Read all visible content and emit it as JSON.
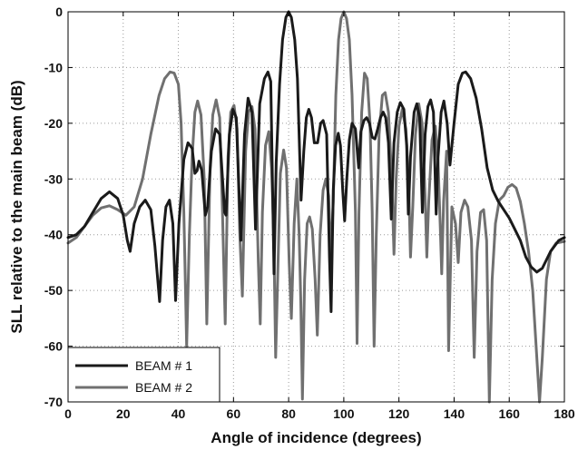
{
  "chart_data": {
    "type": "line",
    "title": "",
    "xlabel": "Angle of incidence (degrees)",
    "ylabel": "SLL relative to the main beam (dB)",
    "xlim": [
      0,
      180
    ],
    "ylim": [
      -70,
      0
    ],
    "xticks": [
      0,
      20,
      40,
      60,
      80,
      100,
      120,
      140,
      160,
      180
    ],
    "yticks": [
      0,
      -10,
      -20,
      -30,
      -40,
      -50,
      -60,
      -70
    ],
    "grid": true,
    "grid_style": "dotted",
    "legend_position": "bottom-left",
    "series": [
      {
        "name": "BEAM # 1",
        "color": "#1a1a1a",
        "points": [
          [
            0,
            -40.5
          ],
          [
            3,
            -40
          ],
          [
            6,
            -38.5
          ],
          [
            9,
            -36
          ],
          [
            12,
            -33.5
          ],
          [
            15,
            -32.3
          ],
          [
            18,
            -33.5
          ],
          [
            20,
            -36.5
          ],
          [
            21.5,
            -41
          ],
          [
            22.5,
            -43
          ],
          [
            24,
            -38
          ],
          [
            26,
            -35
          ],
          [
            28,
            -33.8
          ],
          [
            30,
            -35.5
          ],
          [
            31.5,
            -42
          ],
          [
            32.5,
            -48
          ],
          [
            33.2,
            -52
          ],
          [
            34.3,
            -41
          ],
          [
            35.5,
            -35
          ],
          [
            36.8,
            -33.8
          ],
          [
            38,
            -38
          ],
          [
            39,
            -51.8
          ],
          [
            40.2,
            -38
          ],
          [
            42,
            -26.5
          ],
          [
            43.5,
            -23.5
          ],
          [
            45,
            -24.5
          ],
          [
            46,
            -29
          ],
          [
            46.8,
            -28.5
          ],
          [
            47.5,
            -26.8
          ],
          [
            48.5,
            -28.5
          ],
          [
            49.8,
            -36.5
          ],
          [
            50.6,
            -35
          ],
          [
            52,
            -25
          ],
          [
            53.5,
            -21
          ],
          [
            55,
            -22
          ],
          [
            56.8,
            -36
          ],
          [
            57.3,
            -36.5
          ],
          [
            58.5,
            -22
          ],
          [
            59.8,
            -17.5
          ],
          [
            61,
            -19
          ],
          [
            62.7,
            -41
          ],
          [
            64,
            -22
          ],
          [
            65.3,
            -15.5
          ],
          [
            66.7,
            -18
          ],
          [
            68,
            -39
          ],
          [
            69.5,
            -16.5
          ],
          [
            71.2,
            -12
          ],
          [
            72.5,
            -10.8
          ],
          [
            73.5,
            -12.5
          ],
          [
            74.7,
            -47
          ],
          [
            75.5,
            -27
          ],
          [
            76.7,
            -13
          ],
          [
            77.8,
            -5
          ],
          [
            79,
            -1
          ],
          [
            80,
            0
          ],
          [
            81,
            -1
          ],
          [
            82.2,
            -5
          ],
          [
            83.2,
            -12
          ],
          [
            84.5,
            -33.8
          ],
          [
            85.5,
            -25
          ],
          [
            86.4,
            -19
          ],
          [
            87.3,
            -17.5
          ],
          [
            88.3,
            -19
          ],
          [
            89.3,
            -23.5
          ],
          [
            90.5,
            -23.5
          ],
          [
            91.6,
            -20
          ],
          [
            92.5,
            -19.5
          ],
          [
            93.8,
            -22
          ],
          [
            94.8,
            -44
          ],
          [
            95.4,
            -53.8
          ],
          [
            96.2,
            -32
          ],
          [
            97,
            -24
          ],
          [
            98,
            -21.8
          ],
          [
            98.8,
            -24
          ],
          [
            99.6,
            -32
          ],
          [
            100.3,
            -37.5
          ],
          [
            101.1,
            -30
          ],
          [
            102,
            -23
          ],
          [
            103,
            -20
          ],
          [
            104.2,
            -21
          ],
          [
            105.4,
            -28
          ],
          [
            106.2,
            -21.5
          ],
          [
            107.3,
            -19.5
          ],
          [
            108.3,
            -19
          ],
          [
            109.3,
            -20
          ],
          [
            110.3,
            -22.5
          ],
          [
            111.3,
            -22.8
          ],
          [
            112.3,
            -21
          ],
          [
            113.3,
            -19
          ],
          [
            114.3,
            -18
          ],
          [
            115.2,
            -19
          ],
          [
            116.2,
            -23.5
          ],
          [
            117.2,
            -37.2
          ],
          [
            118.2,
            -23.5
          ],
          [
            119.4,
            -18
          ],
          [
            120.5,
            -16.3
          ],
          [
            121.8,
            -17.5
          ],
          [
            122.8,
            -24
          ],
          [
            123.4,
            -36.3
          ],
          [
            124.2,
            -26
          ],
          [
            125.5,
            -18
          ],
          [
            126.5,
            -16.5
          ],
          [
            127.5,
            -19
          ],
          [
            128.5,
            -36
          ],
          [
            129.5,
            -22
          ],
          [
            130.5,
            -17
          ],
          [
            131.5,
            -15.8
          ],
          [
            132.5,
            -18
          ],
          [
            133.5,
            -36.3
          ],
          [
            134.2,
            -26
          ],
          [
            135.3,
            -18
          ],
          [
            136.3,
            -16
          ],
          [
            137.5,
            -20
          ],
          [
            138.5,
            -27.5
          ],
          [
            140,
            -20
          ],
          [
            141.5,
            -13
          ],
          [
            143,
            -11
          ],
          [
            144.2,
            -10.8
          ],
          [
            146,
            -12
          ],
          [
            148,
            -15.5
          ],
          [
            150,
            -21
          ],
          [
            152,
            -28
          ],
          [
            154,
            -32
          ],
          [
            156,
            -34
          ],
          [
            158,
            -35.5
          ],
          [
            160,
            -37
          ],
          [
            162,
            -39
          ],
          [
            164,
            -41
          ],
          [
            166,
            -44
          ],
          [
            168,
            -45.8
          ],
          [
            170,
            -46.7
          ],
          [
            172,
            -46
          ],
          [
            175,
            -43
          ],
          [
            178,
            -41
          ],
          [
            180,
            -40.5
          ]
        ]
      },
      {
        "name": "BEAM # 2",
        "color": "#707070",
        "points": [
          [
            0,
            -41.5
          ],
          [
            3,
            -40.5
          ],
          [
            6,
            -38.5
          ],
          [
            9,
            -36.5
          ],
          [
            12,
            -35.2
          ],
          [
            15,
            -34.8
          ],
          [
            18,
            -35.5
          ],
          [
            21,
            -36.5
          ],
          [
            24,
            -35
          ],
          [
            27,
            -30
          ],
          [
            30,
            -22
          ],
          [
            33,
            -15
          ],
          [
            35,
            -12
          ],
          [
            37,
            -10.8
          ],
          [
            38.5,
            -11
          ],
          [
            40,
            -13
          ],
          [
            41,
            -20
          ],
          [
            42,
            -36
          ],
          [
            42.5,
            -48
          ],
          [
            43,
            -60
          ],
          [
            44,
            -40
          ],
          [
            45,
            -26
          ],
          [
            46,
            -18
          ],
          [
            47,
            -16
          ],
          [
            48.2,
            -18.5
          ],
          [
            49.4,
            -30
          ],
          [
            50.3,
            -56
          ],
          [
            51.5,
            -28
          ],
          [
            52.5,
            -18.5
          ],
          [
            53.7,
            -15.8
          ],
          [
            55,
            -19
          ],
          [
            56,
            -36
          ],
          [
            57,
            -56
          ],
          [
            58,
            -26
          ],
          [
            59,
            -18
          ],
          [
            60.2,
            -16.8
          ],
          [
            61.3,
            -21
          ],
          [
            62.3,
            -40
          ],
          [
            63.2,
            -51
          ],
          [
            64.4,
            -25
          ],
          [
            65.5,
            -18
          ],
          [
            66.7,
            -17
          ],
          [
            67.8,
            -21
          ],
          [
            69,
            -45
          ],
          [
            69.7,
            -56
          ],
          [
            70.5,
            -36
          ],
          [
            71.6,
            -24
          ],
          [
            72.8,
            -21.5
          ],
          [
            73.8,
            -28
          ],
          [
            74.6,
            -40
          ],
          [
            75.3,
            -62
          ],
          [
            76.2,
            -44
          ],
          [
            77,
            -29
          ],
          [
            78.2,
            -24.8
          ],
          [
            79.2,
            -28
          ],
          [
            80.2,
            -45
          ],
          [
            81,
            -55
          ],
          [
            82,
            -38
          ],
          [
            83,
            -30
          ],
          [
            83.8,
            -40
          ],
          [
            84.4,
            -52
          ],
          [
            85,
            -69.5
          ],
          [
            85.8,
            -48
          ],
          [
            86.7,
            -38
          ],
          [
            87.6,
            -36.8
          ],
          [
            88.6,
            -39
          ],
          [
            89.6,
            -48
          ],
          [
            90.4,
            -58
          ],
          [
            91.4,
            -40
          ],
          [
            92.5,
            -32
          ],
          [
            93.5,
            -30
          ],
          [
            94.5,
            -33
          ],
          [
            95.3,
            -44
          ],
          [
            96.2,
            -34
          ],
          [
            97.1,
            -15
          ],
          [
            98.1,
            -5
          ],
          [
            99,
            -1.2
          ],
          [
            100,
            0
          ],
          [
            101,
            -1.2
          ],
          [
            102,
            -5
          ],
          [
            103,
            -15
          ],
          [
            104.2,
            -36
          ],
          [
            104.8,
            -59.5
          ],
          [
            105.5,
            -36
          ],
          [
            106.5,
            -18
          ],
          [
            107.5,
            -11
          ],
          [
            108.5,
            -12
          ],
          [
            109.5,
            -20
          ],
          [
            110.3,
            -36
          ],
          [
            111,
            -60
          ],
          [
            111.8,
            -40
          ],
          [
            112.8,
            -22
          ],
          [
            114,
            -15
          ],
          [
            115,
            -14.5
          ],
          [
            116.2,
            -18
          ],
          [
            117.4,
            -30
          ],
          [
            118.2,
            -43.5
          ],
          [
            119,
            -30
          ],
          [
            120,
            -20.5
          ],
          [
            121.2,
            -17.5
          ],
          [
            122.5,
            -21
          ],
          [
            123.5,
            -30
          ],
          [
            124.2,
            -44
          ],
          [
            125,
            -35
          ],
          [
            126,
            -22
          ],
          [
            127.2,
            -16.5
          ],
          [
            128.4,
            -20
          ],
          [
            129.5,
            -33
          ],
          [
            130.1,
            -44
          ],
          [
            130.8,
            -34
          ],
          [
            132,
            -23
          ],
          [
            133.2,
            -20.5
          ],
          [
            134.2,
            -27
          ],
          [
            135,
            -39
          ],
          [
            135.5,
            -47
          ],
          [
            136.2,
            -34
          ],
          [
            137.3,
            -25
          ],
          [
            138,
            -60.8
          ],
          [
            139.2,
            -35
          ],
          [
            140.5,
            -38
          ],
          [
            141.5,
            -45
          ],
          [
            142.5,
            -36
          ],
          [
            143.8,
            -33.8
          ],
          [
            145,
            -35
          ],
          [
            146.3,
            -41
          ],
          [
            147.3,
            -62
          ],
          [
            148.3,
            -43
          ],
          [
            149.6,
            -36
          ],
          [
            150.7,
            -35.5
          ],
          [
            151.8,
            -41
          ],
          [
            152.8,
            -70
          ],
          [
            153.8,
            -48
          ],
          [
            155,
            -38
          ],
          [
            156.4,
            -33.8
          ],
          [
            158,
            -33
          ],
          [
            159.5,
            -31.5
          ],
          [
            161,
            -31
          ],
          [
            162.5,
            -31.6
          ],
          [
            164,
            -34
          ],
          [
            165.5,
            -38
          ],
          [
            167,
            -43
          ],
          [
            168.5,
            -50
          ],
          [
            170,
            -62
          ],
          [
            171,
            -70
          ],
          [
            172,
            -62
          ],
          [
            173.5,
            -48
          ],
          [
            175,
            -43
          ],
          [
            177,
            -41.5
          ],
          [
            180,
            -41.2
          ]
        ]
      }
    ]
  }
}
